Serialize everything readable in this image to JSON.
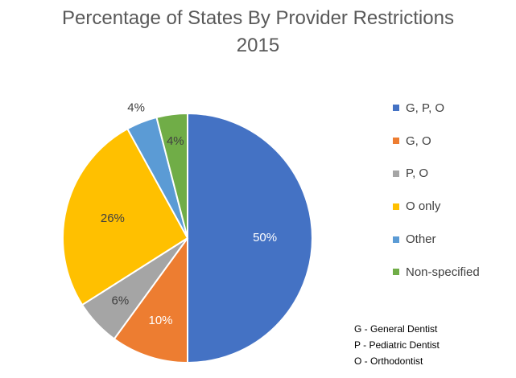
{
  "chart_data": {
    "type": "pie",
    "title_line1": "Percentage of States By Provider Restrictions",
    "title_line2": "2015",
    "slices": [
      {
        "name": "G, P, O",
        "value": 50,
        "label": "50%",
        "color": "#4472C4"
      },
      {
        "name": "G, O",
        "value": 10,
        "label": "10%",
        "color": "#ED7D31"
      },
      {
        "name": "P, O",
        "value": 6,
        "label": "6%",
        "color": "#A5A5A5"
      },
      {
        "name": "O only",
        "value": 26,
        "label": "26%",
        "color": "#FFC000"
      },
      {
        "name": "Other",
        "value": 4,
        "label": "4%",
        "color": "#5B9BD5"
      },
      {
        "name": "Non-specified",
        "value": 4,
        "label": "4%",
        "color": "#70AD47"
      }
    ],
    "legend_position": "right"
  },
  "notes": [
    "G - General Dentist",
    "P - Pediatric Dentist",
    "O - Orthodontist"
  ]
}
